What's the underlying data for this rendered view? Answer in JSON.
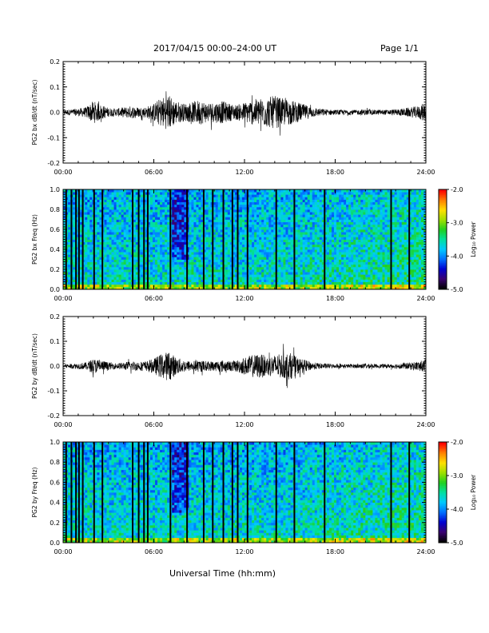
{
  "header": {
    "title": "2017/04/15  00:00–24:00 UT",
    "page": "Page 1/1"
  },
  "x_axis_label": "Universal Time (hh:mm)",
  "colors": {
    "trace": "#000000",
    "colormap": [
      "#000000",
      "#3a0070",
      "#0000d0",
      "#0070ff",
      "#00c8ff",
      "#00e0a0",
      "#20d020",
      "#a0e000",
      "#ffe000",
      "#ff8000",
      "#ff0000"
    ]
  },
  "chart_data": [
    {
      "type": "line",
      "panel": "bx_timeseries",
      "ylabel": "PG2 bx dB/dt (nT/sec)",
      "xlim": [
        0,
        24
      ],
      "ylim": [
        -0.2,
        0.2
      ],
      "xticks": [
        "00:00",
        "06:00",
        "12:00",
        "18:00",
        "24:00"
      ],
      "yticks": [
        "0.2",
        "0.1",
        "0.0",
        "-0.1",
        "-0.2"
      ],
      "yticks_values": [
        0.2,
        0.1,
        0.0,
        -0.1,
        -0.2
      ],
      "x": [
        0,
        0.5,
        1.0,
        1.5,
        2.0,
        2.5,
        3.0,
        3.5,
        4.0,
        4.5,
        5.0,
        5.5,
        6.0,
        6.5,
        7.0,
        7.5,
        8.0,
        8.5,
        9.0,
        9.5,
        10.0,
        10.5,
        11.0,
        11.5,
        12.0,
        12.5,
        13.0,
        13.5,
        14.0,
        14.5,
        15.0,
        15.5,
        16.0,
        16.5,
        17.0,
        17.5,
        18.0,
        18.5,
        19.0,
        19.5,
        20.0,
        20.5,
        21.0,
        21.5,
        22.0,
        22.5,
        23.0,
        23.5,
        24.0
      ],
      "amplitude": [
        0.01,
        0.012,
        0.015,
        0.02,
        0.045,
        0.03,
        0.018,
        0.015,
        0.02,
        0.025,
        0.02,
        0.022,
        0.035,
        0.06,
        0.07,
        0.045,
        0.035,
        0.04,
        0.05,
        0.04,
        0.04,
        0.045,
        0.035,
        0.03,
        0.04,
        0.05,
        0.055,
        0.06,
        0.065,
        0.055,
        0.05,
        0.04,
        0.03,
        0.02,
        0.015,
        0.012,
        0.01,
        0.01,
        0.01,
        0.01,
        0.012,
        0.01,
        0.01,
        0.01,
        0.012,
        0.015,
        0.02,
        0.025,
        0.04
      ]
    },
    {
      "type": "heatmap",
      "panel": "bx_spectrogram",
      "ylabel": "PG2 bx Freq (Hz)",
      "xlim": [
        0,
        24
      ],
      "ylim": [
        0.0,
        1.0
      ],
      "xticks": [
        "00:00",
        "06:00",
        "12:00",
        "18:00",
        "24:00"
      ],
      "yticks": [
        "1.0",
        "0.8",
        "0.6",
        "0.4",
        "0.2",
        "0.0"
      ],
      "yticks_values": [
        1.0,
        0.8,
        0.6,
        0.4,
        0.2,
        0.0
      ],
      "colorbar": {
        "label": "Log₁₀ Power",
        "range": [
          -5.0,
          -2.0
        ],
        "ticks": [
          "-2.0",
          "-3.0",
          "-4.0",
          "-5.0"
        ],
        "ticks_values": [
          -2.0,
          -3.0,
          -4.0,
          -5.0
        ]
      },
      "gap_times": [
        0.2,
        0.55,
        0.85,
        1.05,
        1.3,
        2.05,
        2.6,
        4.6,
        5.0,
        5.35,
        5.6,
        7.1,
        8.2,
        9.3,
        9.9,
        10.6,
        11.2,
        11.55,
        12.2,
        14.1,
        15.3,
        17.3,
        21.7,
        22.9
      ],
      "quiet_band_times": [
        7.2,
        8.3
      ]
    },
    {
      "type": "line",
      "panel": "by_timeseries",
      "ylabel": "PG2 by dB/dt (nT/sec)",
      "xlim": [
        0,
        24
      ],
      "ylim": [
        -0.2,
        0.2
      ],
      "xticks": [
        "00:00",
        "06:00",
        "12:00",
        "18:00",
        "24:00"
      ],
      "yticks": [
        "0.2",
        "0.1",
        "0.0",
        "-0.1",
        "-0.2"
      ],
      "yticks_values": [
        0.2,
        0.1,
        0.0,
        -0.1,
        -0.2
      ],
      "x": [
        0,
        0.5,
        1.0,
        1.5,
        2.0,
        2.5,
        3.0,
        3.5,
        4.0,
        4.5,
        5.0,
        5.5,
        6.0,
        6.5,
        7.0,
        7.5,
        8.0,
        8.5,
        9.0,
        9.5,
        10.0,
        10.5,
        11.0,
        11.5,
        12.0,
        12.5,
        13.0,
        13.5,
        14.0,
        14.5,
        15.0,
        15.5,
        16.0,
        16.5,
        17.0,
        17.5,
        18.0,
        18.5,
        19.0,
        19.5,
        20.0,
        20.5,
        21.0,
        21.5,
        22.0,
        22.5,
        23.0,
        23.5,
        24.0
      ],
      "amplitude": [
        0.008,
        0.01,
        0.012,
        0.015,
        0.03,
        0.025,
        0.015,
        0.012,
        0.015,
        0.02,
        0.018,
        0.02,
        0.03,
        0.05,
        0.06,
        0.035,
        0.025,
        0.02,
        0.025,
        0.02,
        0.02,
        0.025,
        0.02,
        0.025,
        0.035,
        0.045,
        0.05,
        0.04,
        0.045,
        0.05,
        0.055,
        0.035,
        0.025,
        0.015,
        0.012,
        0.01,
        0.008,
        0.008,
        0.008,
        0.008,
        0.01,
        0.008,
        0.008,
        0.008,
        0.01,
        0.012,
        0.015,
        0.02,
        0.025
      ]
    },
    {
      "type": "heatmap",
      "panel": "by_spectrogram",
      "ylabel": "PG2 by Freq (Hz)",
      "xlim": [
        0,
        24
      ],
      "ylim": [
        0.0,
        1.0
      ],
      "xticks": [
        "00:00",
        "06:00",
        "12:00",
        "18:00",
        "24:00"
      ],
      "yticks": [
        "1.0",
        "0.8",
        "0.6",
        "0.4",
        "0.2",
        "0.0"
      ],
      "yticks_values": [
        1.0,
        0.8,
        0.6,
        0.4,
        0.2,
        0.0
      ],
      "colorbar": {
        "label": "Log₁₀ Power",
        "range": [
          -5.0,
          -2.0
        ],
        "ticks": [
          "-2.0",
          "-3.0",
          "-4.0",
          "-5.0"
        ],
        "ticks_values": [
          -2.0,
          -3.0,
          -4.0,
          -5.0
        ]
      },
      "gap_times": [
        0.2,
        0.55,
        0.85,
        1.05,
        1.3,
        2.05,
        2.6,
        4.6,
        5.0,
        5.35,
        5.6,
        7.1,
        8.2,
        9.3,
        9.9,
        10.6,
        11.2,
        11.55,
        12.2,
        14.1,
        15.3,
        17.3,
        21.7,
        22.9
      ],
      "quiet_band_times": [
        7.2,
        8.3
      ]
    }
  ]
}
